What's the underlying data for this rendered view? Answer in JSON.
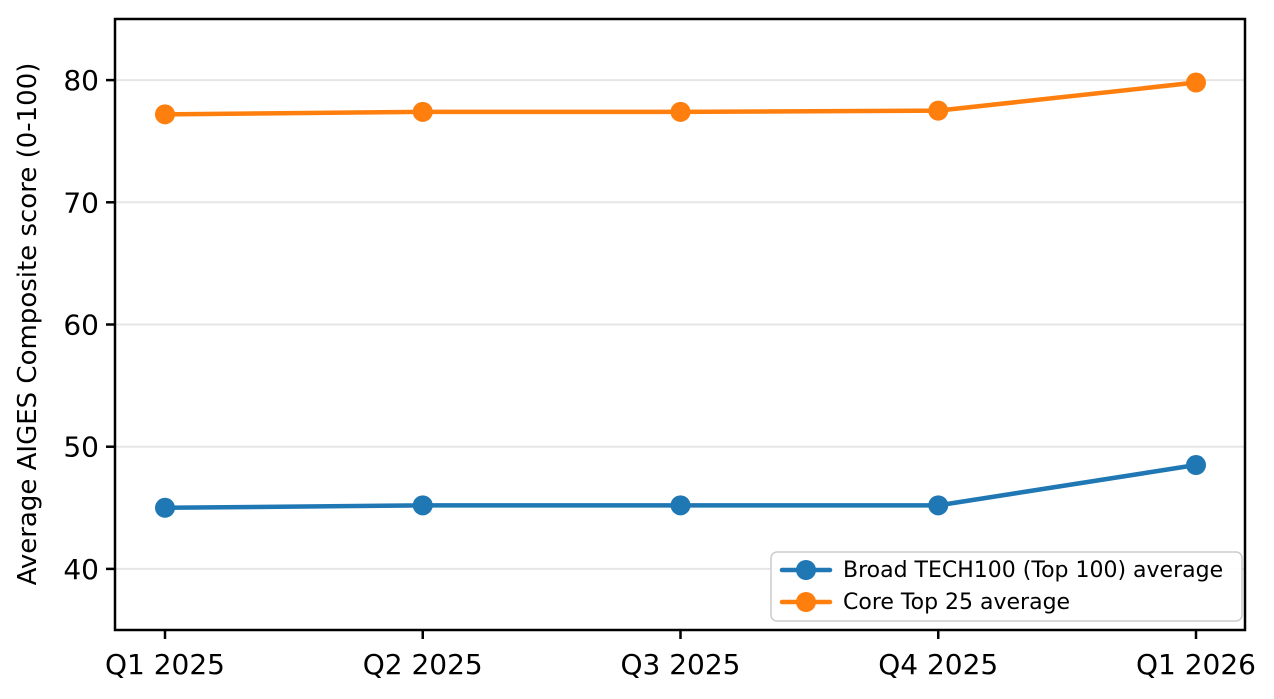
{
  "chart_data": {
    "type": "line",
    "categories": [
      "Q1 2025",
      "Q2 2025",
      "Q3 2025",
      "Q4 2025",
      "Q1 2026"
    ],
    "series": [
      {
        "name": "Broad TECH100 (Top 100) average",
        "color": "#1f77b4",
        "values": [
          45.0,
          45.2,
          45.2,
          45.2,
          48.5
        ]
      },
      {
        "name": "Core Top 25 average",
        "color": "#ff7f0e",
        "values": [
          77.2,
          77.4,
          77.4,
          77.5,
          79.8
        ]
      }
    ],
    "title": "",
    "xlabel": "",
    "ylabel": "Average AIGES Composite score (0-100)",
    "ylim": [
      35,
      85
    ],
    "yticks": [
      40,
      50,
      60,
      70,
      80
    ],
    "grid": true,
    "legend_position": "lower right"
  },
  "style_colors": {
    "grid": "#e6e6e6",
    "spine": "#000000",
    "tick_text": "#000000",
    "legend_border": "#cccccc",
    "legend_bg": "#ffffff"
  }
}
